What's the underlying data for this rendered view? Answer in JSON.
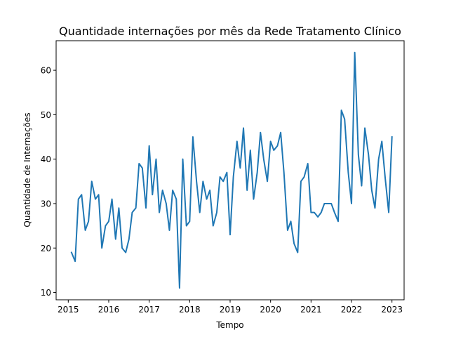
{
  "chart_data": {
    "type": "line",
    "title": "Quantidade internações por mês da Rede Tratamento Clínico",
    "xlabel": "Tempo",
    "ylabel": "Quantidade de Internações",
    "xlim": [
      2014.7,
      2023.3
    ],
    "ylim": [
      8.35,
      66.65
    ],
    "x_ticks": [
      2015,
      2016,
      2017,
      2018,
      2019,
      2020,
      2021,
      2022,
      2023
    ],
    "y_ticks": [
      10,
      20,
      30,
      40,
      50,
      60
    ],
    "grid": false,
    "series": [
      {
        "color": "#1f77b4",
        "x": [
          2015.08,
          2015.17,
          2015.25,
          2015.33,
          2015.42,
          2015.5,
          2015.58,
          2015.67,
          2015.75,
          2015.83,
          2015.92,
          2016.0,
          2016.08,
          2016.17,
          2016.25,
          2016.33,
          2016.42,
          2016.5,
          2016.58,
          2016.67,
          2016.75,
          2016.83,
          2016.92,
          2017.0,
          2017.08,
          2017.17,
          2017.25,
          2017.33,
          2017.42,
          2017.5,
          2017.58,
          2017.67,
          2017.75,
          2017.83,
          2017.92,
          2018.0,
          2018.08,
          2018.17,
          2018.25,
          2018.33,
          2018.42,
          2018.5,
          2018.58,
          2018.67,
          2018.75,
          2018.83,
          2018.92,
          2019.0,
          2019.08,
          2019.17,
          2019.25,
          2019.33,
          2019.42,
          2019.5,
          2019.58,
          2019.67,
          2019.75,
          2019.83,
          2019.92,
          2020.0,
          2020.08,
          2020.17,
          2020.25,
          2020.33,
          2020.42,
          2020.5,
          2020.58,
          2020.67,
          2020.75,
          2020.83,
          2020.92,
          2021.0,
          2021.08,
          2021.17,
          2021.25,
          2021.33,
          2021.42,
          2021.5,
          2021.58,
          2021.67,
          2021.75,
          2021.83,
          2021.92,
          2022.0,
          2022.08,
          2022.17,
          2022.25,
          2022.33,
          2022.42,
          2022.5,
          2022.58,
          2022.67,
          2022.75,
          2022.83,
          2022.92,
          2023.0
        ],
        "y": [
          19,
          17,
          31,
          32,
          24,
          26,
          35,
          31,
          32,
          20,
          25,
          26,
          31,
          22,
          29,
          20,
          19,
          22,
          28,
          29,
          39,
          38,
          29,
          43,
          32,
          40,
          28,
          33,
          30,
          24,
          33,
          31,
          11,
          40,
          25,
          26,
          45,
          35,
          28,
          35,
          31,
          33,
          25,
          28,
          36,
          35,
          37,
          23,
          36,
          44,
          38,
          47,
          33,
          42,
          31,
          37,
          46,
          40,
          35,
          44,
          42,
          43,
          46,
          37,
          24,
          26,
          21,
          19,
          35,
          36,
          39,
          28,
          28,
          27,
          28,
          30,
          30,
          30,
          28,
          26,
          51,
          49,
          37,
          30,
          64,
          41,
          34,
          47,
          41,
          33,
          29,
          40,
          44,
          36,
          28,
          45
        ]
      }
    ]
  }
}
